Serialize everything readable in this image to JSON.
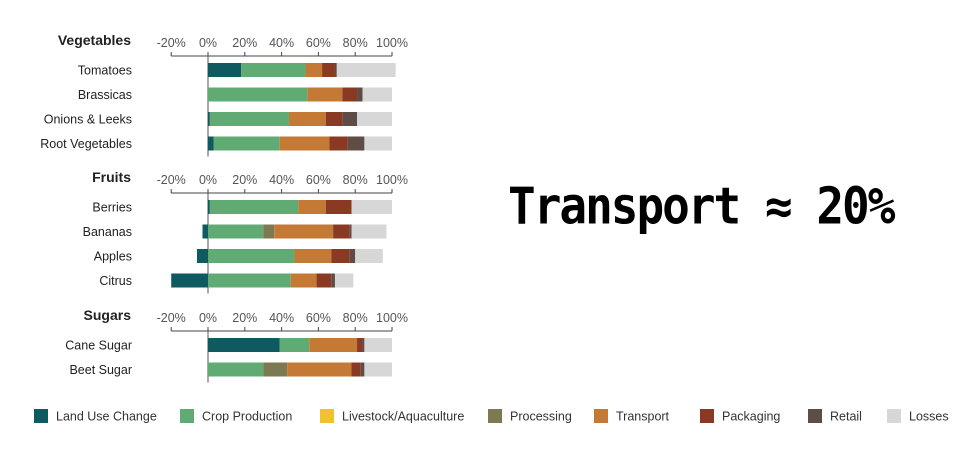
{
  "overlay": {
    "text": "Transport ≈ 20%"
  },
  "colors": {
    "Land Use Change": "#0f5a60",
    "Crop Production": "#60ab74",
    "Livestock/Aquaculture": "#f2c12e",
    "Processing": "#7c7a52",
    "Transport": "#c47a35",
    "Packaging": "#8a3a22",
    "Retail": "#5e4c47",
    "Losses": "#d7d7d7"
  },
  "chart_data": {
    "type": "bar",
    "orientation": "horizontal",
    "stacked": true,
    "xlim": [
      -20,
      100
    ],
    "tick_labels": [
      "-20%",
      "0%",
      "20%",
      "40%",
      "60%",
      "80%",
      "100%"
    ],
    "legend": {
      "placement": "bottom",
      "entries": [
        "Land Use Change",
        "Crop Production",
        "Livestock/Aquaculture",
        "Processing",
        "Transport",
        "Packaging",
        "Retail",
        "Losses"
      ]
    },
    "groups": [
      {
        "title": "Vegetables",
        "items": [
          {
            "label": "Tomatoes",
            "values": [
              18,
              35,
              0,
              0,
              9,
              7,
              1,
              32
            ]
          },
          {
            "label": "Brassicas",
            "values": [
              0,
              54,
              0,
              0,
              19,
              8,
              3,
              16
            ]
          },
          {
            "label": "Onions & Leeks",
            "values": [
              1,
              43,
              0,
              0,
              20,
              9,
              8,
              19
            ]
          },
          {
            "label": "Root Vegetables",
            "values": [
              3,
              36,
              0,
              0,
              27,
              10,
              9,
              15
            ]
          }
        ]
      },
      {
        "title": "Fruits",
        "items": [
          {
            "label": "Berries",
            "values": [
              1,
              48,
              0,
              0,
              15,
              14,
              0,
              22
            ]
          },
          {
            "label": "Bananas",
            "values": [
              -3,
              30,
              0,
              6,
              32,
              9,
              1,
              19
            ]
          },
          {
            "label": "Apples",
            "values": [
              -6,
              47,
              0,
              0,
              20,
              10,
              3,
              15
            ]
          },
          {
            "label": "Citrus",
            "values": [
              -20,
              45,
              0,
              0,
              14,
              8,
              2,
              10
            ]
          }
        ]
      },
      {
        "title": "Sugars",
        "items": [
          {
            "label": "Cane Sugar",
            "values": [
              39,
              16,
              0,
              0,
              26,
              3,
              1,
              15
            ]
          },
          {
            "label": "Beet Sugar",
            "values": [
              0,
              30,
              0,
              13,
              35,
              5,
              2,
              15
            ]
          }
        ]
      }
    ]
  }
}
